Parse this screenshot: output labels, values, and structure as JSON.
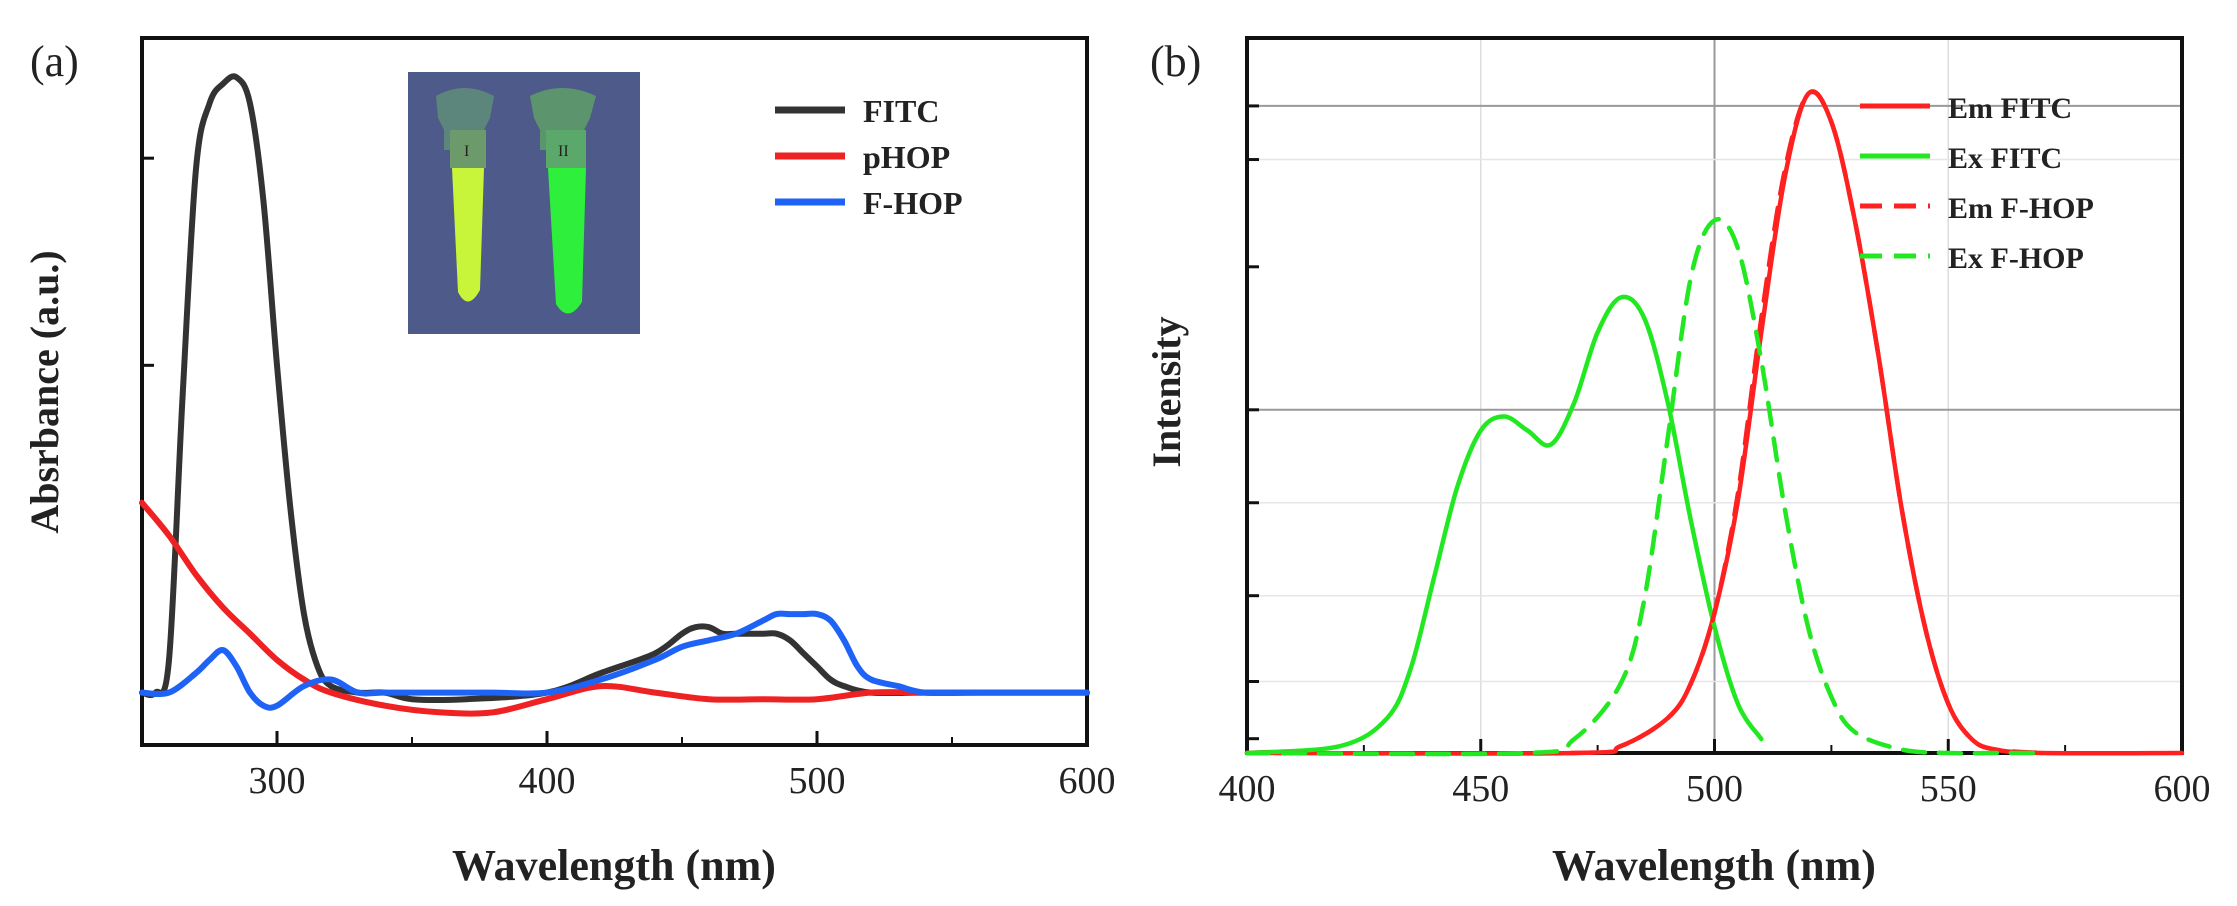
{
  "chart_data": [
    {
      "panel_label": "(a)",
      "type": "line",
      "title": "",
      "xlabel": "Wavelength (nm)",
      "ylabel": "Absrbance (a.u.)",
      "xlim": [
        250,
        600
      ],
      "ylim": [
        -0.08,
        1.0
      ],
      "x_ticks": [
        300,
        400,
        500,
        600
      ],
      "x_tick_labels": [
        "300",
        "400",
        "500",
        "600"
      ],
      "y_ticks": [
        0,
        0.5,
        1.0
      ],
      "y_tick_labels": [],
      "grid": false,
      "legend_position": "top-right",
      "inset": {
        "description": "photo of two vials under UV light",
        "labels": [
          "I",
          "II"
        ],
        "colors": {
          "background": "#4e5a8a",
          "vial_1": "#c8f53a",
          "vial_2": "#2ef03c"
        }
      },
      "series": [
        {
          "name": "FITC",
          "color": "#333333",
          "dash": "solid",
          "x": [
            250,
            255,
            260,
            265,
            270,
            275,
            280,
            285,
            290,
            295,
            300,
            305,
            310,
            315,
            320,
            330,
            340,
            350,
            370,
            400,
            420,
            440,
            450,
            455,
            460,
            465,
            470,
            480,
            485,
            490,
            495,
            500,
            505,
            510,
            520,
            540,
            560,
            580,
            600
          ],
          "y": [
            0.0,
            0.0,
            0.05,
            0.45,
            0.8,
            0.9,
            0.93,
            0.94,
            0.9,
            0.75,
            0.5,
            0.28,
            0.12,
            0.04,
            0.01,
            0.0,
            0.0,
            -0.01,
            -0.01,
            0.0,
            0.03,
            0.06,
            0.09,
            0.1,
            0.1,
            0.09,
            0.09,
            0.09,
            0.09,
            0.08,
            0.06,
            0.04,
            0.02,
            0.01,
            0.0,
            0.0,
            0.0,
            0.0,
            0.0
          ]
        },
        {
          "name": "pHOP",
          "color": "#ee2222",
          "dash": "solid",
          "x": [
            250,
            260,
            270,
            280,
            290,
            300,
            310,
            320,
            340,
            360,
            380,
            400,
            420,
            440,
            460,
            480,
            500,
            520,
            540,
            560,
            580,
            600
          ],
          "y": [
            0.29,
            0.24,
            0.18,
            0.13,
            0.09,
            0.05,
            0.02,
            0.0,
            -0.02,
            -0.03,
            -0.03,
            -0.01,
            0.01,
            0.0,
            -0.01,
            -0.01,
            -0.01,
            0.0,
            0.0,
            0.0,
            0.0,
            0.0
          ]
        },
        {
          "name": "F-HOP",
          "color": "#1e63f5",
          "dash": "solid",
          "x": [
            250,
            260,
            270,
            275,
            280,
            285,
            290,
            295,
            300,
            310,
            320,
            330,
            340,
            360,
            380,
            400,
            420,
            440,
            450,
            460,
            470,
            480,
            485,
            490,
            495,
            500,
            505,
            510,
            515,
            520,
            530,
            540,
            560,
            580,
            600
          ],
          "y": [
            0.0,
            0.0,
            0.03,
            0.05,
            0.065,
            0.04,
            0.0,
            -0.02,
            -0.02,
            0.01,
            0.02,
            0.0,
            0.0,
            0.0,
            0.0,
            0.0,
            0.02,
            0.05,
            0.07,
            0.08,
            0.09,
            0.11,
            0.12,
            0.12,
            0.12,
            0.12,
            0.11,
            0.08,
            0.04,
            0.02,
            0.01,
            0.0,
            0.0,
            0.0,
            0.0
          ]
        }
      ]
    },
    {
      "panel_label": "(b)",
      "type": "line",
      "title": "",
      "xlabel": "Wavelength (nm)",
      "ylabel": "Intensity",
      "xlim": [
        400,
        600
      ],
      "ylim": [
        0,
        1.02
      ],
      "x_ticks": [
        400,
        450,
        500,
        550,
        600
      ],
      "x_tick_labels": [
        "400",
        "450",
        "500",
        "550",
        "600"
      ],
      "y_tick_labels": [],
      "grid": true,
      "legend_position": "top-right",
      "series": [
        {
          "name": "Em FITC",
          "color": "#ff2020",
          "dash": "solid",
          "x": [
            400,
            470,
            480,
            490,
            495,
            500,
            505,
            510,
            515,
            520,
            525,
            530,
            535,
            540,
            545,
            550,
            555,
            560,
            570,
            600
          ],
          "y": [
            0.0,
            0.0,
            0.01,
            0.05,
            0.1,
            0.2,
            0.36,
            0.6,
            0.82,
            0.94,
            0.9,
            0.76,
            0.57,
            0.35,
            0.18,
            0.07,
            0.02,
            0.005,
            0.0,
            0.0
          ]
        },
        {
          "name": "Ex FITC",
          "color": "#22e822",
          "dash": "solid",
          "x": [
            400,
            420,
            430,
            435,
            440,
            445,
            450,
            455,
            460,
            465,
            470,
            475,
            480,
            485,
            490,
            495,
            500,
            505,
            510
          ],
          "y": [
            0.0,
            0.01,
            0.05,
            0.12,
            0.25,
            0.38,
            0.46,
            0.48,
            0.46,
            0.44,
            0.5,
            0.6,
            0.65,
            0.62,
            0.5,
            0.33,
            0.18,
            0.07,
            0.02
          ]
        },
        {
          "name": "Em F-HOP",
          "color": "#ff2020",
          "dash": "dashed",
          "x": [
            400,
            470,
            480,
            490,
            495,
            500,
            505,
            510,
            515,
            520,
            525,
            530,
            535,
            540,
            545,
            550,
            555,
            560,
            570
          ],
          "y": [
            0.0,
            0.0,
            0.01,
            0.05,
            0.1,
            0.2,
            0.37,
            0.62,
            0.83,
            0.94,
            0.9,
            0.76,
            0.57,
            0.35,
            0.18,
            0.07,
            0.02,
            0.005,
            0.0
          ]
        },
        {
          "name": "Ex F-HOP",
          "color": "#22e822",
          "dash": "dashed",
          "x": [
            400,
            460,
            470,
            480,
            485,
            490,
            495,
            500,
            505,
            510,
            515,
            520,
            525,
            530,
            540,
            550,
            560,
            570
          ],
          "y": [
            0.0,
            0.0,
            0.02,
            0.1,
            0.22,
            0.45,
            0.68,
            0.76,
            0.72,
            0.56,
            0.35,
            0.18,
            0.08,
            0.03,
            0.005,
            0.0,
            0.0,
            0.0
          ]
        }
      ]
    }
  ]
}
